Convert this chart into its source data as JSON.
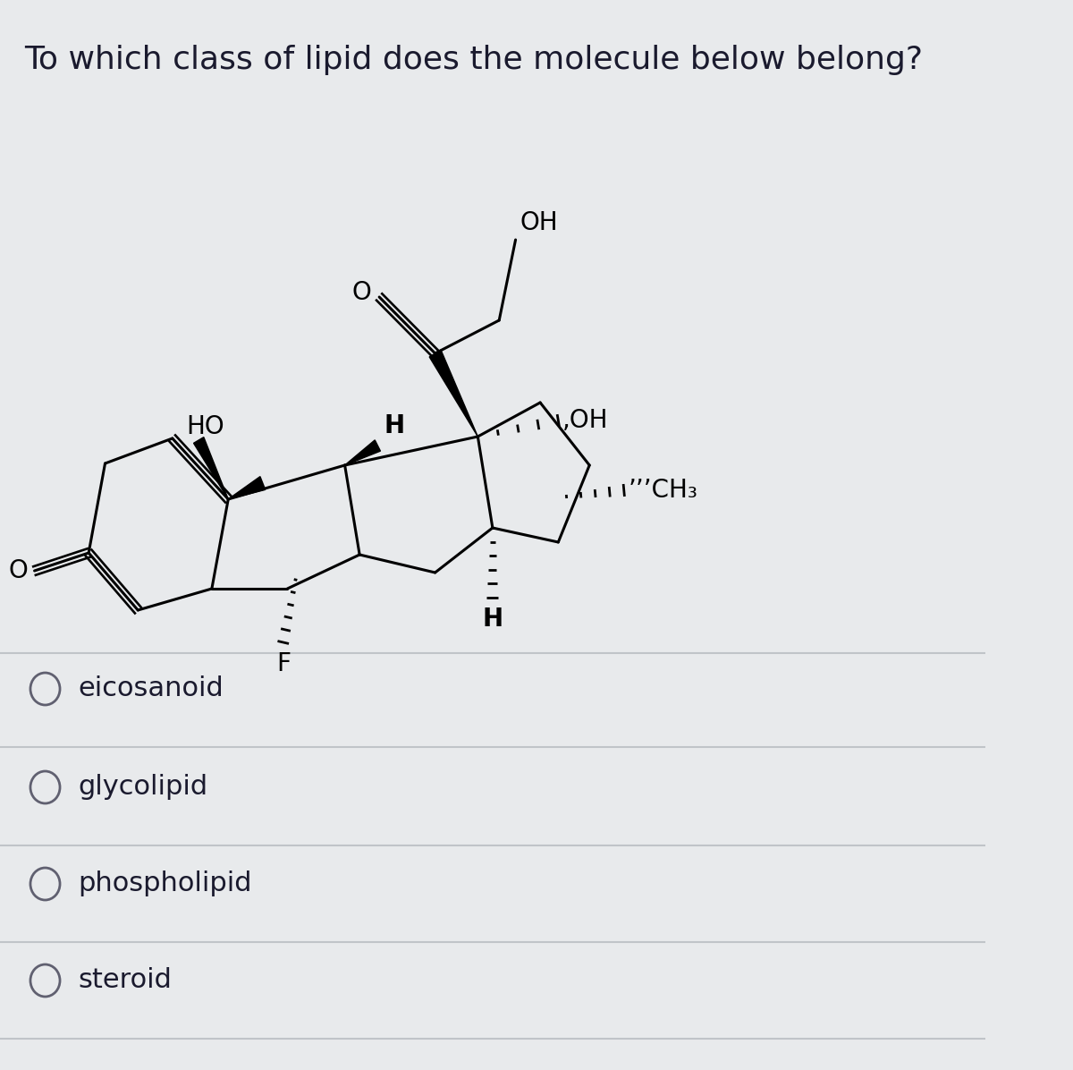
{
  "title": "To which class of lipid does the molecule below belong?",
  "title_fontsize": 26,
  "bg_color": "#e8eaec",
  "options": [
    "eicosanoid",
    "glycolipid",
    "phospholipid",
    "steroid"
  ],
  "option_fontsize": 22,
  "divider_color": "#c0c4c8",
  "text_color": "#1a1a2e",
  "mol_color": "#000000",
  "mol_lw": 2.2
}
